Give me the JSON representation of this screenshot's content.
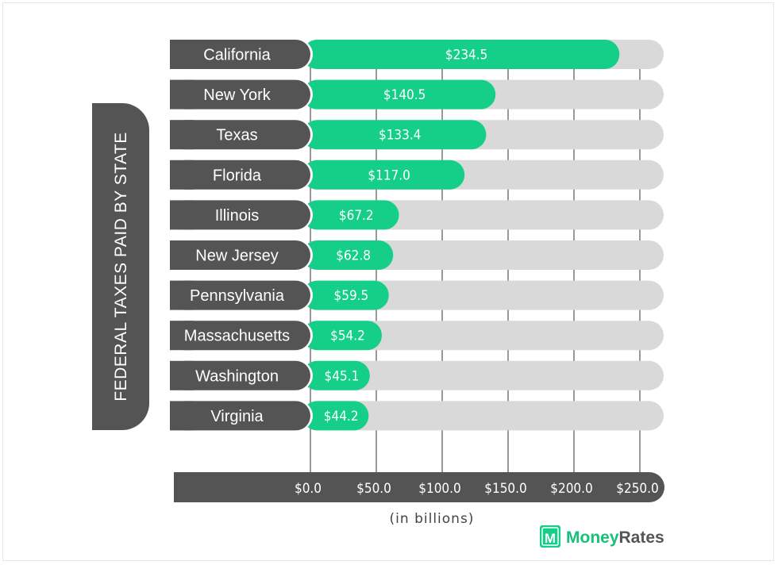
{
  "chart_data": {
    "type": "bar",
    "orientation": "horizontal",
    "title": "FEDERAL TAXES PAID BY STATE",
    "xlabel": "(in billions)",
    "categories": [
      "California",
      "New York",
      "Texas",
      "Florida",
      "Illinois",
      "New Jersey",
      "Pennsylvania",
      "Massachusetts",
      "Washington",
      "Virginia"
    ],
    "values": [
      234.5,
      140.5,
      133.4,
      117.0,
      67.2,
      62.8,
      59.5,
      54.2,
      45.1,
      44.2
    ],
    "value_labels": [
      "$234.5",
      "$140.5",
      "$133.4",
      "$117.0",
      "$67.2",
      "$62.8",
      "$59.5",
      "$54.2",
      "$45.1",
      "$44.2"
    ],
    "xticks": [
      0,
      50,
      100,
      150,
      200,
      250
    ],
    "xtick_labels": [
      "$0.0",
      "$50.0",
      "$100.0",
      "$150.0",
      "$200.0",
      "$250.0"
    ],
    "xlim": [
      0,
      268
    ],
    "grid": "vertical",
    "colors": {
      "bar": "#15cf88",
      "track": "#d9d9d9",
      "label_bg": "#545454",
      "axis_bg": "#545454",
      "gridline": "#555555",
      "text_dark": "#444444"
    }
  },
  "brand": {
    "logo_letter": "M",
    "name_part1": "Money",
    "name_part2": "Rates",
    "logo_color": "#15cf88",
    "name1_color": "#15c078",
    "name2_color": "#555555",
    "icon": "moneyrates-logo-icon"
  }
}
